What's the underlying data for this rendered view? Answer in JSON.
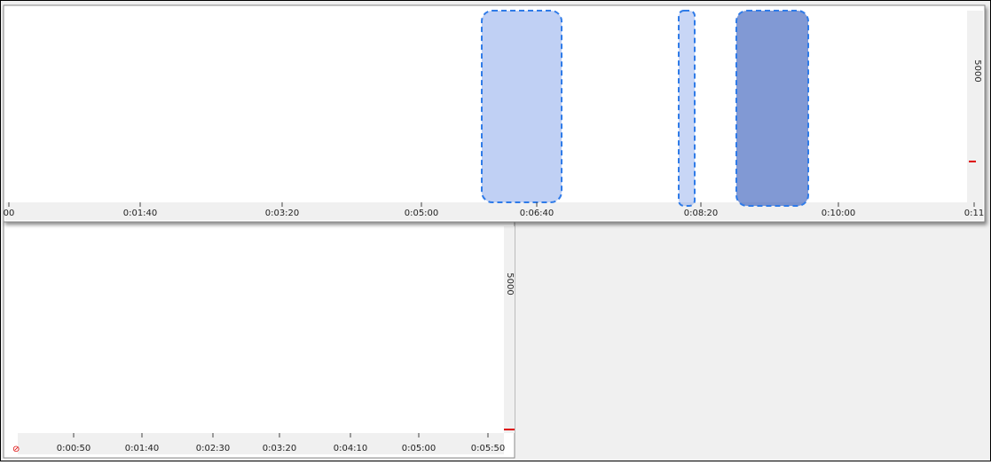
{
  "top_panel": {
    "time_labels": [
      "00",
      "0:01:40",
      "0:03:20",
      "0:05:00",
      "0:06:40",
      "0:08:20",
      "0:10:00",
      "0:11"
    ],
    "freq_label": "5000"
  },
  "bottom_panel": {
    "time_labels": [
      "0:00:50",
      "0:01:40",
      "0:02:30",
      "0:03:20",
      "0:04:10",
      "0:05:00",
      "0:05:50"
    ],
    "freq_label": "5000"
  }
}
